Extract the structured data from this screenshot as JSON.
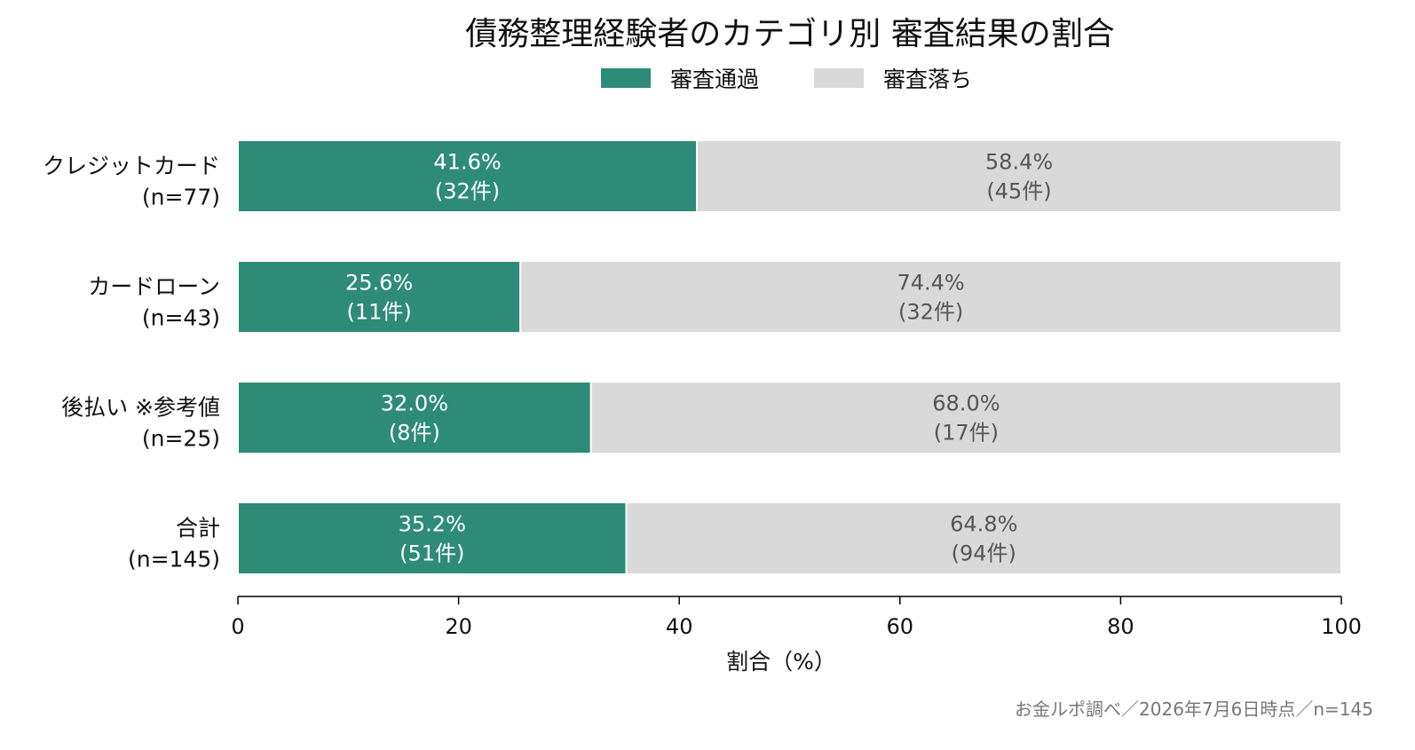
{
  "chart_data": {
    "type": "bar",
    "orientation": "horizontal",
    "stacked": true,
    "title": "債務整理経験者のカテゴリ別 審査結果の割合",
    "xlabel": "割合（%）",
    "xlim": [
      0,
      100
    ],
    "xticks": [
      "0",
      "20",
      "40",
      "60",
      "80",
      "100"
    ],
    "grid": false,
    "legend_position": "top",
    "categories": [
      {
        "label": "クレジットカード",
        "n": "(n=77)"
      },
      {
        "label": "カードローン",
        "n": "(n=43)"
      },
      {
        "label": "後払い ※参考値",
        "n": "(n=25)"
      },
      {
        "label": "合計",
        "n": "(n=145)"
      }
    ],
    "series": [
      {
        "name": "審査通過",
        "color": "#2e8b78",
        "text_color": "#ffffff",
        "values": [
          41.6,
          25.6,
          32.0,
          35.2
        ],
        "pct_labels": [
          "41.6%",
          "25.6%",
          "32.0%",
          "35.2%"
        ],
        "count_labels": [
          "(32件)",
          "(11件)",
          "(8件)",
          "(51件)"
        ]
      },
      {
        "name": "審査落ち",
        "color": "#d9d9d9",
        "text_color": "#555555",
        "values": [
          58.4,
          74.4,
          68.0,
          64.8
        ],
        "pct_labels": [
          "58.4%",
          "74.4%",
          "68.0%",
          "64.8%"
        ],
        "count_labels": [
          "(45件)",
          "(32件)",
          "(17件)",
          "(94件)"
        ]
      }
    ]
  },
  "source_note": "お金ルポ調べ／2026年7月6日時点／n=145"
}
